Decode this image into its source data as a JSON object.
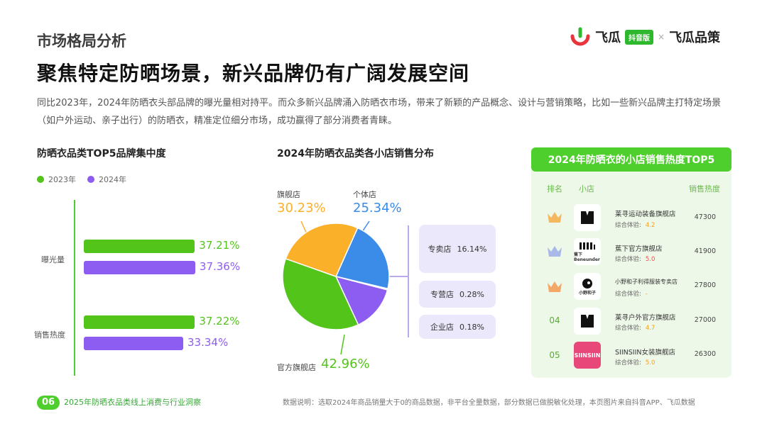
{
  "header": {
    "section": "市场格局分析",
    "headline": "聚焦特定防晒场景，新兴品牌仍有广阔发展空间",
    "intro": "同比2023年，2024年防晒衣头部品牌的曝光量相对持平。而众多新兴品牌涌入防晒衣市场，带来了新颖的产品概念、设计与营销策略，比如一些新兴品牌主打特定场景（如户外运动、亲子出行）的防晒衣，精准定位细分市场，成功赢得了部分消费者青睐。"
  },
  "logo": {
    "name1": "飞瓜",
    "badge": "抖音版",
    "sep": "×",
    "name2": "飞瓜品策"
  },
  "colors": {
    "y2023": "#52c41a",
    "y2024": "#8d5cf0",
    "orange": "#fbb02a",
    "blue": "#3b8be8",
    "purple": "#8d5cf0",
    "green": "#52c41a"
  },
  "chart_data": [
    {
      "type": "bar",
      "title": "防晒衣品类TOP5品牌集中度",
      "categories": [
        "曝光量",
        "销售热度"
      ],
      "series": [
        {
          "name": "2023年",
          "values": [
            37.21,
            37.22
          ],
          "labels": [
            "37.21%",
            "37.22%"
          ]
        },
        {
          "name": "2024年",
          "values": [
            37.36,
            33.34
          ],
          "labels": [
            "37.36%",
            "33.34%"
          ]
        }
      ],
      "legend_position": "top-left",
      "orientation": "horizontal"
    },
    {
      "type": "pie",
      "title": "2024年防晒衣品类各小店销售分布",
      "slices": [
        {
          "name": "个体店",
          "value": 25.34,
          "label": "25.34%"
        },
        {
          "name": "企业店",
          "value": 0.18,
          "label": "0.18%"
        },
        {
          "name": "专营店",
          "value": 0.28,
          "label": "0.28%"
        },
        {
          "name": "专卖店",
          "value": 16.14,
          "label": "16.14%"
        },
        {
          "name": "官方旗舰店",
          "value": 42.96,
          "label": "42.96%"
        },
        {
          "name": "旗舰店",
          "value": 30.23,
          "label": "30.23%"
        }
      ]
    }
  ],
  "ranking": {
    "title": "2024年防晒衣的小店销售热度TOP5",
    "col_rank": "排名",
    "col_shop": "小店",
    "col_heat": "销售热度",
    "score_label": "综合体验:",
    "rows": [
      {
        "rank": "",
        "icon": "gold-crown-icon",
        "name": "莱寻运动装备旗舰店",
        "score": "4.2",
        "heat": "47300",
        "logo_text": "M"
      },
      {
        "rank": "",
        "icon": "silver-crown-icon",
        "name": "蕉下官方旗舰店",
        "score": "5.0",
        "heat": "41900",
        "logo_text": "蕉下 Beneunder"
      },
      {
        "rank": "",
        "icon": "bronze-crown-icon",
        "name": "小野和子利得服装专卖店",
        "score": "-",
        "heat": "27800",
        "logo_text": "小野和子"
      },
      {
        "rank": "04",
        "icon": "",
        "name": "莱寻户外官方旗舰店",
        "score": "4.7",
        "heat": "27000",
        "logo_text": "M"
      },
      {
        "rank": "05",
        "icon": "",
        "name": "SIINSIIN女装旗舰店",
        "score": "5.0",
        "heat": "26300",
        "logo_text": "SIINSIIN"
      }
    ]
  },
  "footer": {
    "page": "06",
    "title": "2025年防晒衣品类线上消费与行业洞察",
    "note": "数据说明：选取2024年商品销量大于0的商品数据，非平台全量数据，部分数据已做脱敏化处理，本页图片来自抖音APP、飞瓜数据"
  }
}
